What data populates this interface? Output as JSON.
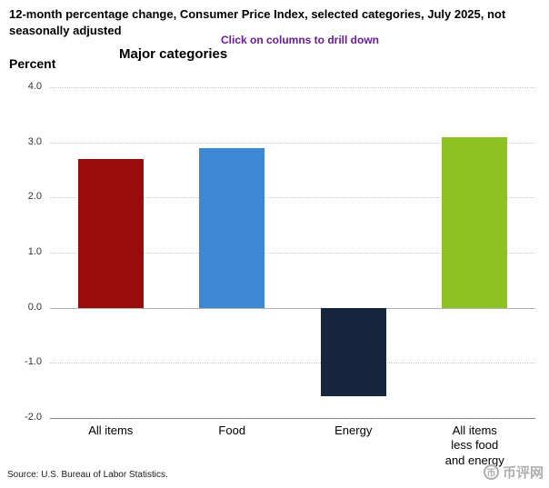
{
  "header": {
    "title": "12-month percentage change, Consumer Price Index, selected categories, July 2025, not seasonally adjusted",
    "drill_hint": "Click on columns to drill down",
    "drill_hint_color": "#6a1b9a"
  },
  "chart_data": {
    "type": "bar",
    "title": "Major categories",
    "ylabel": "Percent",
    "categories": [
      "All items",
      "Food",
      "Energy",
      "All items\nless food\nand energy"
    ],
    "values": [
      2.7,
      2.9,
      -1.6,
      3.1
    ],
    "bar_colors": [
      "#9a0c0c",
      "#3d88d2",
      "#16263e",
      "#8dc220"
    ],
    "ylim": [
      -2.0,
      4.0
    ],
    "yticks": [
      "4.0",
      "3.0",
      "2.0",
      "1.0",
      "0.0",
      "-1.0",
      "-2.0"
    ],
    "grid": true,
    "legend": false
  },
  "footer": {
    "source": "Source: U.S. Bureau of Labor Statistics."
  },
  "watermark": {
    "text": "币评网"
  }
}
